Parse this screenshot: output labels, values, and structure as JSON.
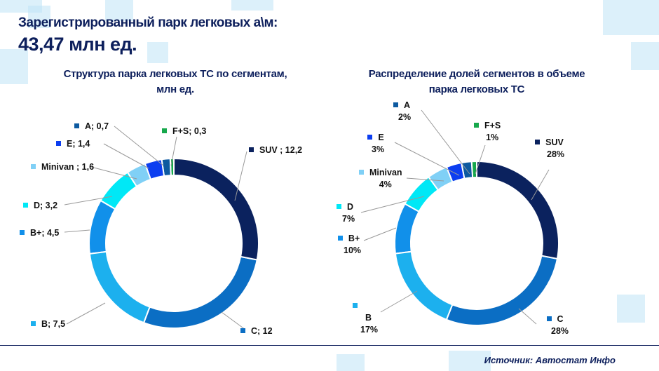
{
  "header": {
    "title": "Зарегистрированный парк легковых а\\м:",
    "total": "43,47 млн ед."
  },
  "source": "Источник: Автостат Инфо",
  "chart_data": [
    {
      "type": "pie",
      "variant": "donut",
      "title": "Структура парка легковых ТС по сегментам, млн ед.",
      "title_lines": [
        "Структура парка легковых ТС по сегментам,",
        "млн ед."
      ],
      "categories": [
        "SUV",
        "C",
        "B",
        "B+",
        "D",
        "Minivan",
        "E",
        "A",
        "F+S"
      ],
      "values": [
        12.2,
        12,
        7.5,
        4.5,
        3.2,
        1.6,
        1.4,
        0.7,
        0.3
      ],
      "labels": [
        "SUV ; 12,2",
        "C; 12",
        "B; 7,5",
        "B+; 4,5",
        "D; 3,2",
        "Minivan ; 1,6",
        "E; 1,4",
        "A; 0,7",
        "F+S; 0,3"
      ],
      "colors": [
        "#0b225e",
        "#0b6ec4",
        "#1cb0ee",
        "#1190ea",
        "#00e8f6",
        "#80d0f6",
        "#0c3ef0",
        "#0d5aa0",
        "#17a84c"
      ]
    },
    {
      "type": "pie",
      "variant": "donut",
      "title": "Распределение долей сегментов в объеме парка легковых ТС",
      "title_lines": [
        "Распределение долей сегментов в объеме",
        "парка легковых ТС"
      ],
      "categories": [
        "SUV",
        "C",
        "B",
        "B+",
        "D",
        "Minivan",
        "E",
        "A",
        "F+S"
      ],
      "values": [
        28,
        28,
        17,
        10,
        7,
        4,
        3,
        2,
        1
      ],
      "pct_labels": [
        "28%",
        "28%",
        "17%",
        "10%",
        "7%",
        "4%",
        "3%",
        "2%",
        "1%"
      ],
      "colors": [
        "#0b225e",
        "#0b6ec4",
        "#1cb0ee",
        "#1190ea",
        "#00e8f6",
        "#80d0f6",
        "#0c3ef0",
        "#0d5aa0",
        "#17a84c"
      ]
    }
  ]
}
